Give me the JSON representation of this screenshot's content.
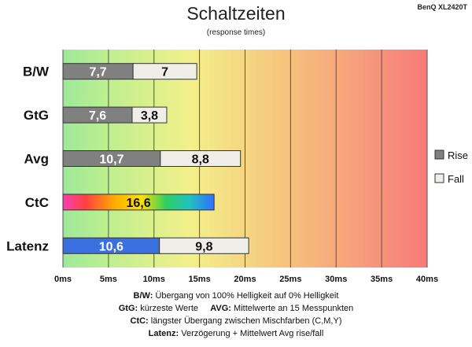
{
  "chart_data": {
    "type": "bar",
    "orientation": "horizontal",
    "stacked": true,
    "title": "Schaltzeiten",
    "subtitle": "(response times)",
    "model": "BenQ XL2420T",
    "categories": [
      "B/W",
      "GtG",
      "Avg",
      "CtC",
      "Latenz"
    ],
    "series": [
      {
        "name": "Rise",
        "values": [
          7.7,
          7.6,
          10.7,
          null,
          null
        ]
      },
      {
        "name": "Fall",
        "values": [
          7,
          3.8,
          8.8,
          null,
          null
        ]
      }
    ],
    "single": [
      {
        "category": "CtC",
        "value": 16.6,
        "label": "16,6",
        "style": "rainbow"
      },
      {
        "category": "Latenz",
        "values": [
          10.6,
          9.8
        ],
        "labels": [
          "10,6",
          "9,8"
        ],
        "style": "blue"
      }
    ],
    "data_labels": [
      [
        "7,7",
        "7"
      ],
      [
        "7,6",
        "3,8"
      ],
      [
        "10,7",
        "8,8"
      ],
      [
        "16,6"
      ],
      [
        "10,6",
        "9,8"
      ]
    ],
    "xlim": [
      0,
      40
    ],
    "xticks": [
      0,
      5,
      10,
      15,
      20,
      25,
      30,
      35,
      40
    ],
    "xtick_labels": [
      "0ms",
      "5ms",
      "10ms",
      "15ms",
      "20ms",
      "25ms",
      "30ms",
      "35ms",
      "40ms"
    ],
    "grid": true,
    "legend": {
      "position": "right",
      "entries": [
        "Rise",
        "Fall"
      ]
    },
    "colors": {
      "rise": "#808080",
      "fall": "#f0eee8",
      "latenz_blue": "#3a6fe0",
      "bg_green": "#9ee89a",
      "bg_yellow": "#f3f08a",
      "bg_red": "#f77a7a"
    }
  },
  "notes": [
    {
      "bold": "B/W:",
      "text": " Übergang von 100% Helligkeit auf 0% Helligkeit"
    },
    {
      "bold": "GtG:",
      "text": " kürzeste Werte",
      "bold2": "AVG:",
      "text2": " Mittelwerte an 15 Messpunkten"
    },
    {
      "bold": "CtC:",
      "text": " längster Übergang zwischen Mischfarben (C,M,Y)"
    },
    {
      "bold": "Latenz:",
      "text": " Verzögerung + Mittelwert Avg rise/fall"
    }
  ]
}
